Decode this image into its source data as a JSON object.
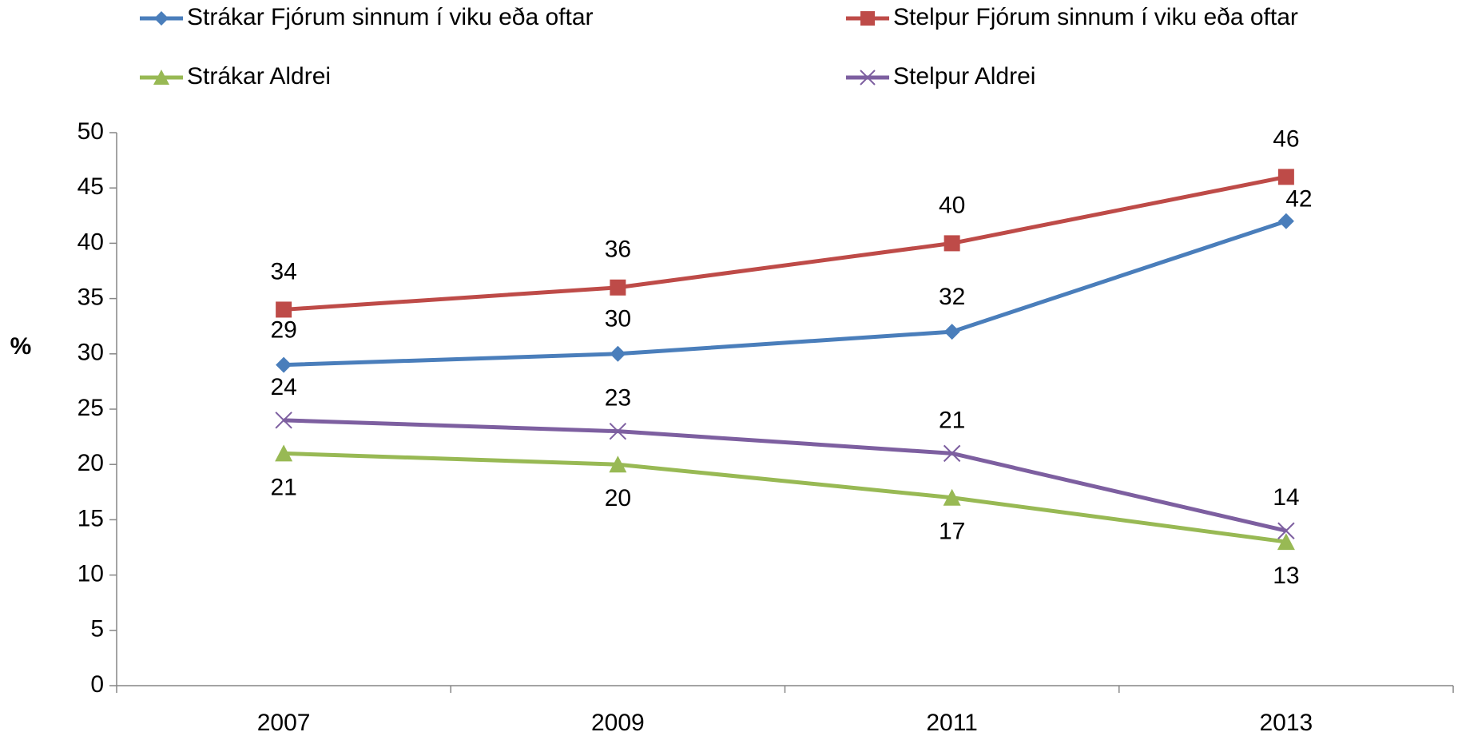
{
  "chart_data": {
    "type": "line",
    "y_label": "%",
    "categories": [
      "2007",
      "2009",
      "2011",
      "2013"
    ],
    "series": [
      {
        "name": "Strákar Fjórum sinnum í viku eða oftar",
        "color": "#4a7ebb",
        "marker": "diamond",
        "values": [
          29,
          30,
          32,
          42
        ]
      },
      {
        "name": "Stelpur Fjórum sinnum í viku eða oftar",
        "color": "#be4b48",
        "marker": "square",
        "values": [
          34,
          36,
          40,
          46
        ]
      },
      {
        "name": "Strákar Aldrei",
        "color": "#98b954",
        "marker": "triangle",
        "values": [
          21,
          20,
          17,
          13
        ]
      },
      {
        "name": "Stelpur Aldrei",
        "color": "#7d5fa0",
        "marker": "x",
        "values": [
          24,
          23,
          21,
          14
        ]
      }
    ],
    "ylim": [
      0,
      50
    ],
    "yticks": [
      0,
      5,
      10,
      15,
      20,
      25,
      30,
      35,
      40,
      45,
      50
    ],
    "legend": "top",
    "grid": false
  }
}
